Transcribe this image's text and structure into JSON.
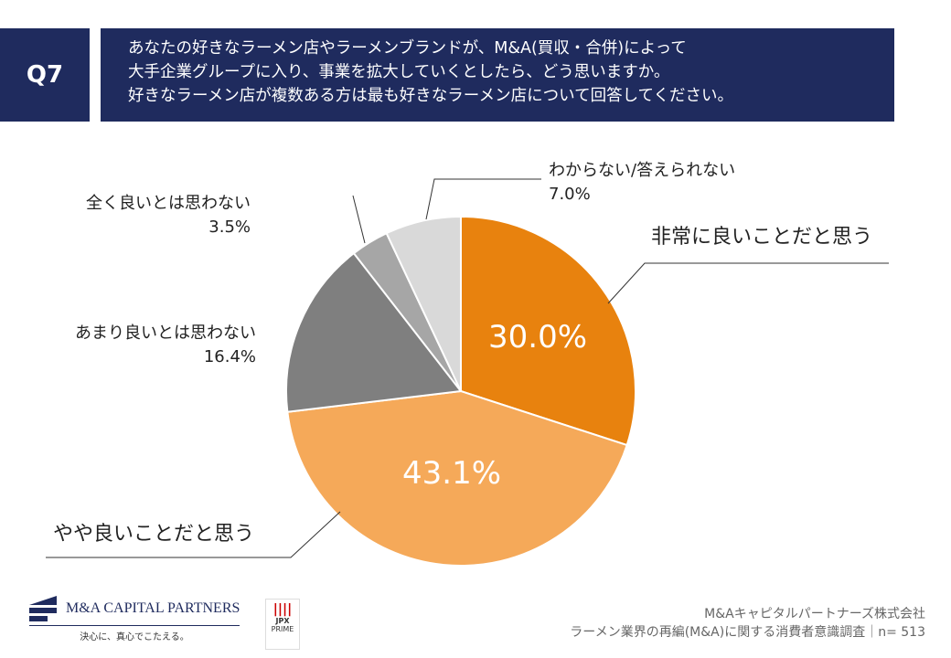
{
  "header": {
    "q_label": "Q7",
    "question": [
      "あなたの好きなラーメン店やラーメンブランドが、M&A(買収・合併)によって",
      "大手企業グループに入り、事業を拡大していくとしたら、どう思いますか。",
      "好きなラーメン店が複数ある方は最も好きなラーメン店について回答してください。"
    ]
  },
  "chart_data": {
    "type": "pie",
    "title": "",
    "slices": [
      {
        "label": "非常に良いことだと思う",
        "value": 30.0,
        "display": "30.0%",
        "color": "#E8820E"
      },
      {
        "label": "やや良いことだと思う",
        "value": 43.1,
        "display": "43.1%",
        "color": "#F5A959"
      },
      {
        "label": "あまり良いとは思わない",
        "value": 16.4,
        "display": "16.4%",
        "color": "#7F7F7F"
      },
      {
        "label": "全く良いとは思わない",
        "value": 3.5,
        "display": "3.5%",
        "color": "#A6A6A6"
      },
      {
        "label": "わからない/答えられない",
        "value": 7.0,
        "display": "7.0%",
        "color": "#D9D9D9"
      }
    ],
    "start": "12 o'clock",
    "direction": "clockwise"
  },
  "logo": {
    "company": "M&A CAPITAL PARTNERS",
    "tagline": "決心に、真心でこたえる。",
    "jpx": "JPX",
    "jpx_sub": "PRIME"
  },
  "footer": {
    "line1": "M&Aキャピタルパートナーズ株式会社",
    "line2": "ラーメン業界の再編(M&A)に関する消費者意識調査｜n= 513"
  }
}
